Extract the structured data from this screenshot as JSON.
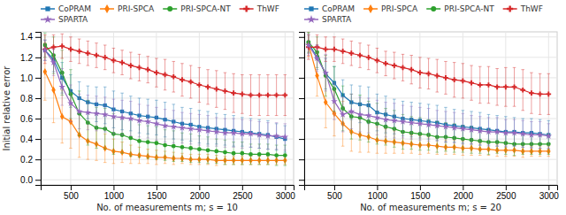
{
  "chart_data": [
    {
      "type": "line",
      "xlabel": "No. of measurements m; s = 10",
      "ylabel": "Initial relative error",
      "x": [
        200,
        300,
        400,
        500,
        600,
        700,
        800,
        900,
        1000,
        1100,
        1200,
        1300,
        1400,
        1500,
        1600,
        1700,
        1800,
        1900,
        2000,
        2100,
        2200,
        2300,
        2400,
        2500,
        2600,
        2700,
        2800,
        2900,
        3000
      ],
      "xlim": [
        150,
        3100
      ],
      "xticks": [
        500,
        1000,
        1500,
        2000,
        2500,
        3000
      ],
      "ylim": [
        -0.05,
        1.45
      ],
      "yticks": [
        {
          "value": 0,
          "label": "0.0"
        },
        0.2,
        0.4,
        0.6,
        0.8,
        {
          "value": 1.0,
          "label": "1.0"
        },
        1.2,
        1.4
      ],
      "grid": true,
      "legend": "top",
      "series": [
        {
          "name": "CoPRAM",
          "marker": "square",
          "values": [
            1.27,
            1.18,
            1.0,
            0.87,
            0.8,
            0.76,
            0.74,
            0.73,
            0.69,
            0.67,
            0.65,
            0.63,
            0.62,
            0.61,
            0.59,
            0.57,
            0.55,
            0.54,
            0.52,
            0.51,
            0.5,
            0.49,
            0.48,
            0.47,
            0.46,
            0.45,
            0.44,
            0.42,
            0.4
          ],
          "err": [
            0.1,
            0.12,
            0.15,
            0.16,
            0.16,
            0.16,
            0.17,
            0.18,
            0.18,
            0.18,
            0.17,
            0.17,
            0.17,
            0.17,
            0.17,
            0.17,
            0.16,
            0.16,
            0.16,
            0.16,
            0.15,
            0.15,
            0.15,
            0.14,
            0.14,
            0.14,
            0.14,
            0.13,
            0.13
          ]
        },
        {
          "name": "PRI-SPCA",
          "marker": "diamond",
          "values": [
            1.06,
            0.88,
            0.62,
            0.57,
            0.44,
            0.38,
            0.35,
            0.31,
            0.28,
            0.27,
            0.25,
            0.24,
            0.23,
            0.22,
            0.22,
            0.21,
            0.21,
            0.2,
            0.2,
            0.2,
            0.19,
            0.19,
            0.19,
            0.19,
            0.19,
            0.19,
            0.19,
            0.19,
            0.19
          ],
          "err": [
            0.28,
            0.32,
            0.26,
            0.26,
            0.22,
            0.18,
            0.16,
            0.14,
            0.12,
            0.1,
            0.09,
            0.08,
            0.07,
            0.07,
            0.06,
            0.06,
            0.05,
            0.05,
            0.05,
            0.05,
            0.05,
            0.04,
            0.04,
            0.04,
            0.04,
            0.04,
            0.04,
            0.04,
            0.04
          ]
        },
        {
          "name": "PRI-SPCA-NT",
          "marker": "circle",
          "values": [
            1.32,
            1.22,
            1.05,
            0.84,
            0.65,
            0.56,
            0.51,
            0.5,
            0.45,
            0.44,
            0.41,
            0.38,
            0.37,
            0.36,
            0.34,
            0.33,
            0.32,
            0.31,
            0.3,
            0.29,
            0.28,
            0.27,
            0.26,
            0.26,
            0.25,
            0.25,
            0.25,
            0.24,
            0.24
          ],
          "err": [
            0.12,
            0.18,
            0.22,
            0.24,
            0.22,
            0.22,
            0.2,
            0.2,
            0.2,
            0.18,
            0.18,
            0.16,
            0.16,
            0.16,
            0.15,
            0.15,
            0.14,
            0.14,
            0.13,
            0.13,
            0.12,
            0.12,
            0.11,
            0.11,
            0.1,
            0.1,
            0.1,
            0.1,
            0.1
          ]
        },
        {
          "name": "ThWF",
          "marker": "plus",
          "values": [
            1.28,
            1.3,
            1.31,
            1.28,
            1.26,
            1.24,
            1.22,
            1.2,
            1.17,
            1.15,
            1.12,
            1.1,
            1.08,
            1.05,
            1.03,
            1.01,
            0.98,
            0.96,
            0.93,
            0.91,
            0.89,
            0.87,
            0.85,
            0.84,
            0.83,
            0.83,
            0.83,
            0.83,
            0.83
          ],
          "err": [
            0.14,
            0.12,
            0.12,
            0.12,
            0.12,
            0.12,
            0.12,
            0.12,
            0.12,
            0.12,
            0.13,
            0.13,
            0.13,
            0.14,
            0.15,
            0.15,
            0.16,
            0.16,
            0.17,
            0.17,
            0.18,
            0.18,
            0.19,
            0.19,
            0.2,
            0.2,
            0.2,
            0.2,
            0.2
          ]
        },
        {
          "name": "SPARTA",
          "marker": "star",
          "values": [
            1.27,
            1.15,
            0.91,
            0.75,
            0.67,
            0.66,
            0.65,
            0.64,
            0.62,
            0.61,
            0.6,
            0.58,
            0.57,
            0.55,
            0.53,
            0.52,
            0.51,
            0.5,
            0.49,
            0.48,
            0.47,
            0.46,
            0.46,
            0.45,
            0.45,
            0.44,
            0.43,
            0.43,
            0.42
          ],
          "err": [
            0.1,
            0.13,
            0.18,
            0.18,
            0.17,
            0.17,
            0.17,
            0.17,
            0.17,
            0.17,
            0.17,
            0.16,
            0.16,
            0.16,
            0.16,
            0.16,
            0.15,
            0.15,
            0.15,
            0.15,
            0.14,
            0.14,
            0.14,
            0.14,
            0.13,
            0.13,
            0.13,
            0.13,
            0.13
          ]
        }
      ]
    },
    {
      "type": "line",
      "xlabel": "No. of measurements m; s = 20",
      "x": [
        200,
        300,
        400,
        500,
        600,
        700,
        800,
        900,
        1000,
        1100,
        1200,
        1300,
        1400,
        1500,
        1600,
        1700,
        1800,
        1900,
        2000,
        2100,
        2200,
        2300,
        2400,
        2500,
        2600,
        2700,
        2800,
        2900,
        3000
      ],
      "xlim": [
        150,
        3100
      ],
      "xticks": [
        500,
        1000,
        1500,
        2000,
        2500,
        3000
      ],
      "ylim": [
        -0.05,
        1.45
      ],
      "yticks": [
        {
          "value": 0,
          "label": "0.0"
        },
        0.2,
        0.4,
        0.6,
        0.8,
        {
          "value": 1.0,
          "label": "1.0"
        },
        1.2,
        1.4
      ],
      "tick_labels": "x",
      "grid": true,
      "legend": "top",
      "series": [
        {
          "name": "CoPRAM",
          "marker": "square",
          "values": [
            1.34,
            1.2,
            1.04,
            0.95,
            0.83,
            0.76,
            0.74,
            0.73,
            0.66,
            0.64,
            0.62,
            0.6,
            0.59,
            0.58,
            0.57,
            0.56,
            0.54,
            0.53,
            0.52,
            0.51,
            0.5,
            0.49,
            0.48,
            0.47,
            0.47,
            0.46,
            0.46,
            0.45,
            0.44
          ],
          "err": [
            0.1,
            0.12,
            0.15,
            0.16,
            0.15,
            0.17,
            0.18,
            0.18,
            0.18,
            0.18,
            0.17,
            0.17,
            0.17,
            0.17,
            0.17,
            0.17,
            0.17,
            0.16,
            0.16,
            0.16,
            0.16,
            0.15,
            0.15,
            0.15,
            0.14,
            0.14,
            0.14,
            0.14,
            0.14
          ]
        },
        {
          "name": "PRI-SPCA",
          "marker": "diamond",
          "values": [
            1.33,
            1.02,
            0.76,
            0.65,
            0.55,
            0.47,
            0.44,
            0.42,
            0.39,
            0.38,
            0.37,
            0.36,
            0.35,
            0.34,
            0.34,
            0.33,
            0.32,
            0.32,
            0.31,
            0.31,
            0.3,
            0.3,
            0.29,
            0.29,
            0.29,
            0.28,
            0.28,
            0.28,
            0.28
          ],
          "err": [
            0.12,
            0.2,
            0.25,
            0.22,
            0.22,
            0.19,
            0.17,
            0.15,
            0.13,
            0.12,
            0.11,
            0.1,
            0.09,
            0.09,
            0.08,
            0.08,
            0.07,
            0.07,
            0.07,
            0.07,
            0.06,
            0.06,
            0.06,
            0.06,
            0.06,
            0.06,
            0.05,
            0.05,
            0.05
          ]
        },
        {
          "name": "PRI-SPCA-NT",
          "marker": "circle",
          "values": [
            1.35,
            1.25,
            1.02,
            0.89,
            0.7,
            0.62,
            0.61,
            0.57,
            0.55,
            0.52,
            0.5,
            0.47,
            0.46,
            0.45,
            0.44,
            0.42,
            0.42,
            0.41,
            0.4,
            0.39,
            0.38,
            0.37,
            0.37,
            0.36,
            0.35,
            0.35,
            0.35,
            0.35,
            0.35
          ],
          "err": [
            0.1,
            0.15,
            0.2,
            0.22,
            0.22,
            0.22,
            0.22,
            0.2,
            0.2,
            0.18,
            0.18,
            0.17,
            0.16,
            0.16,
            0.15,
            0.15,
            0.14,
            0.14,
            0.13,
            0.13,
            0.12,
            0.12,
            0.11,
            0.11,
            0.11,
            0.1,
            0.1,
            0.1,
            0.1
          ]
        },
        {
          "name": "ThWF",
          "marker": "plus",
          "values": [
            1.3,
            1.3,
            1.28,
            1.28,
            1.26,
            1.24,
            1.22,
            1.2,
            1.17,
            1.14,
            1.12,
            1.1,
            1.08,
            1.05,
            1.04,
            1.02,
            1.0,
            0.98,
            0.97,
            0.95,
            0.93,
            0.93,
            0.91,
            0.91,
            0.91,
            0.88,
            0.85,
            0.84,
            0.84
          ],
          "err": [
            0.12,
            0.12,
            0.12,
            0.12,
            0.12,
            0.12,
            0.12,
            0.12,
            0.12,
            0.12,
            0.13,
            0.13,
            0.14,
            0.15,
            0.15,
            0.16,
            0.16,
            0.17,
            0.17,
            0.17,
            0.18,
            0.18,
            0.18,
            0.19,
            0.19,
            0.2,
            0.2,
            0.2,
            0.2
          ]
        },
        {
          "name": "SPARTA",
          "marker": "star",
          "values": [
            1.32,
            1.19,
            1.05,
            0.77,
            0.64,
            0.67,
            0.64,
            0.63,
            0.61,
            0.59,
            0.58,
            0.57,
            0.56,
            0.55,
            0.54,
            0.53,
            0.52,
            0.51,
            0.5,
            0.49,
            0.48,
            0.47,
            0.47,
            0.46,
            0.46,
            0.45,
            0.44,
            0.44,
            0.43
          ],
          "err": [
            0.1,
            0.13,
            0.18,
            0.18,
            0.17,
            0.17,
            0.17,
            0.17,
            0.17,
            0.17,
            0.17,
            0.16,
            0.16,
            0.16,
            0.16,
            0.15,
            0.15,
            0.15,
            0.15,
            0.14,
            0.14,
            0.14,
            0.14,
            0.13,
            0.13,
            0.13,
            0.13,
            0.13,
            0.12
          ]
        }
      ]
    }
  ]
}
